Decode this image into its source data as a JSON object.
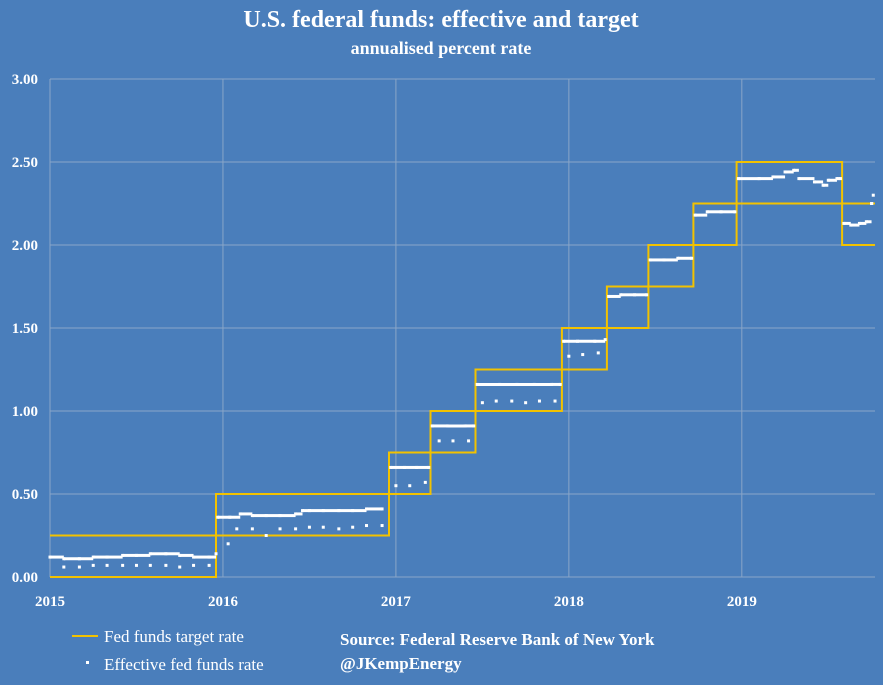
{
  "chart_data": {
    "type": "line",
    "title": "U.S. federal funds: effective and target",
    "subtitle": "annualised percent rate",
    "ylim": [
      0,
      3
    ],
    "xlim": [
      2015.0,
      2019.77
    ],
    "y_ticks": [
      "0.00",
      "0.50",
      "1.00",
      "1.50",
      "2.00",
      "2.50",
      "3.00"
    ],
    "x_ticks": [
      {
        "label": "2015",
        "value": 2015.0
      },
      {
        "label": "2016",
        "value": 2016.0
      },
      {
        "label": "2017",
        "value": 2017.0
      },
      {
        "label": "2018",
        "value": 2018.0
      },
      {
        "label": "2019",
        "value": 2019.0
      }
    ],
    "grid": true,
    "target_series": {
      "name": "Fed funds target rate",
      "upper": [
        [
          2015.0,
          0.25
        ],
        [
          2015.96,
          0.25
        ],
        [
          2015.96,
          0.5
        ],
        [
          2016.96,
          0.5
        ],
        [
          2016.96,
          0.75
        ],
        [
          2017.2,
          0.75
        ],
        [
          2017.2,
          1.0
        ],
        [
          2017.46,
          1.0
        ],
        [
          2017.46,
          1.25
        ],
        [
          2017.96,
          1.25
        ],
        [
          2017.96,
          1.5
        ],
        [
          2018.22,
          1.5
        ],
        [
          2018.22,
          1.75
        ],
        [
          2018.46,
          1.75
        ],
        [
          2018.46,
          2.0
        ],
        [
          2018.72,
          2.0
        ],
        [
          2018.72,
          2.25
        ],
        [
          2018.97,
          2.25
        ],
        [
          2018.97,
          2.5
        ],
        [
          2019.58,
          2.5
        ],
        [
          2019.58,
          2.25
        ],
        [
          2019.77,
          2.25
        ]
      ],
      "lower": [
        [
          2015.0,
          0.0
        ],
        [
          2015.96,
          0.0
        ],
        [
          2015.96,
          0.25
        ],
        [
          2016.96,
          0.25
        ],
        [
          2016.96,
          0.5
        ],
        [
          2017.2,
          0.5
        ],
        [
          2017.2,
          0.75
        ],
        [
          2017.46,
          0.75
        ],
        [
          2017.46,
          1.0
        ],
        [
          2017.96,
          1.0
        ],
        [
          2017.96,
          1.25
        ],
        [
          2018.22,
          1.25
        ],
        [
          2018.22,
          1.5
        ],
        [
          2018.46,
          1.5
        ],
        [
          2018.46,
          1.75
        ],
        [
          2018.72,
          1.75
        ],
        [
          2018.72,
          2.0
        ],
        [
          2018.97,
          2.0
        ],
        [
          2018.97,
          2.25
        ],
        [
          2019.58,
          2.25
        ],
        [
          2019.58,
          2.0
        ],
        [
          2019.77,
          2.0
        ]
      ],
      "color": "#f2c200"
    },
    "effective_series": {
      "name": "Effective fed funds rate",
      "color": "#ffffff",
      "points": [
        [
          2015.0,
          0.12
        ],
        [
          2015.08,
          0.11
        ],
        [
          2015.17,
          0.11
        ],
        [
          2015.25,
          0.12
        ],
        [
          2015.33,
          0.12
        ],
        [
          2015.42,
          0.13
        ],
        [
          2015.5,
          0.13
        ],
        [
          2015.58,
          0.14
        ],
        [
          2015.67,
          0.14
        ],
        [
          2015.75,
          0.13
        ],
        [
          2015.83,
          0.12
        ],
        [
          2015.92,
          0.12
        ],
        [
          2015.96,
          0.14
        ],
        [
          2015.97,
          0.36
        ],
        [
          2016.04,
          0.36
        ],
        [
          2016.1,
          0.38
        ],
        [
          2016.17,
          0.37
        ],
        [
          2016.25,
          0.37
        ],
        [
          2016.33,
          0.37
        ],
        [
          2016.42,
          0.38
        ],
        [
          2016.46,
          0.4
        ],
        [
          2016.5,
          0.4
        ],
        [
          2016.58,
          0.4
        ],
        [
          2016.67,
          0.4
        ],
        [
          2016.75,
          0.4
        ],
        [
          2016.83,
          0.41
        ],
        [
          2016.92,
          0.41
        ],
        [
          2016.97,
          0.66
        ],
        [
          2017.05,
          0.66
        ],
        [
          2017.12,
          0.66
        ],
        [
          2017.19,
          0.66
        ],
        [
          2017.21,
          0.91
        ],
        [
          2017.3,
          0.91
        ],
        [
          2017.4,
          0.91
        ],
        [
          2017.45,
          0.91
        ],
        [
          2017.47,
          1.16
        ],
        [
          2017.6,
          1.16
        ],
        [
          2017.7,
          1.16
        ],
        [
          2017.8,
          1.16
        ],
        [
          2017.9,
          1.16
        ],
        [
          2017.95,
          1.16
        ],
        [
          2017.97,
          1.42
        ],
        [
          2018.05,
          1.42
        ],
        [
          2018.15,
          1.42
        ],
        [
          2018.21,
          1.43
        ],
        [
          2018.23,
          1.69
        ],
        [
          2018.3,
          1.7
        ],
        [
          2018.38,
          1.7
        ],
        [
          2018.45,
          1.7
        ],
        [
          2018.47,
          1.91
        ],
        [
          2018.55,
          1.91
        ],
        [
          2018.63,
          1.92
        ],
        [
          2018.71,
          1.92
        ],
        [
          2018.73,
          2.18
        ],
        [
          2018.8,
          2.2
        ],
        [
          2018.88,
          2.2
        ],
        [
          2018.96,
          2.2
        ],
        [
          2018.98,
          2.4
        ],
        [
          2019.1,
          2.4
        ],
        [
          2019.18,
          2.41
        ],
        [
          2019.25,
          2.44
        ],
        [
          2019.3,
          2.45
        ],
        [
          2019.33,
          2.4
        ],
        [
          2019.42,
          2.38
        ],
        [
          2019.47,
          2.36
        ],
        [
          2019.5,
          2.39
        ],
        [
          2019.55,
          2.4
        ],
        [
          2019.57,
          2.4
        ],
        [
          2019.59,
          2.13
        ],
        [
          2019.63,
          2.12
        ],
        [
          2019.68,
          2.13
        ],
        [
          2019.72,
          2.14
        ],
        [
          2019.75,
          2.25
        ],
        [
          2019.76,
          2.3
        ]
      ],
      "low_points": [
        [
          2015.08,
          0.06
        ],
        [
          2015.17,
          0.06
        ],
        [
          2015.25,
          0.07
        ],
        [
          2015.33,
          0.07
        ],
        [
          2015.42,
          0.07
        ],
        [
          2015.5,
          0.07
        ],
        [
          2015.58,
          0.07
        ],
        [
          2015.67,
          0.07
        ],
        [
          2015.75,
          0.06
        ],
        [
          2015.83,
          0.07
        ],
        [
          2015.92,
          0.07
        ],
        [
          2016.03,
          0.2
        ],
        [
          2016.08,
          0.29
        ],
        [
          2016.17,
          0.29
        ],
        [
          2016.25,
          0.25
        ],
        [
          2016.33,
          0.29
        ],
        [
          2016.42,
          0.29
        ],
        [
          2016.5,
          0.3
        ],
        [
          2016.58,
          0.3
        ],
        [
          2016.67,
          0.29
        ],
        [
          2016.75,
          0.3
        ],
        [
          2016.83,
          0.31
        ],
        [
          2016.92,
          0.31
        ],
        [
          2017.0,
          0.55
        ],
        [
          2017.08,
          0.55
        ],
        [
          2017.17,
          0.57
        ],
        [
          2017.25,
          0.82
        ],
        [
          2017.33,
          0.82
        ],
        [
          2017.42,
          0.82
        ],
        [
          2017.5,
          1.05
        ],
        [
          2017.58,
          1.06
        ],
        [
          2017.67,
          1.06
        ],
        [
          2017.75,
          1.05
        ],
        [
          2017.83,
          1.06
        ],
        [
          2017.92,
          1.06
        ],
        [
          2018.0,
          1.33
        ],
        [
          2018.08,
          1.34
        ],
        [
          2018.17,
          1.35
        ]
      ]
    },
    "legend": [
      {
        "label": "Fed funds target rate",
        "kind": "line"
      },
      {
        "label": "Effective fed funds rate",
        "kind": "dot"
      }
    ],
    "source": "Source: Federal Reserve Bank of New York",
    "handle": "@JKempEnergy"
  }
}
